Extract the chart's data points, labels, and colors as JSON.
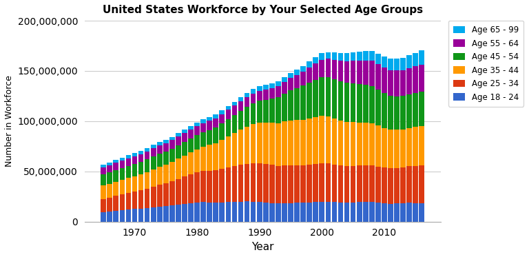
{
  "title": "United States Workforce by Your Selected Age Groups",
  "xlabel": "Year",
  "ylabel": "Number in Workforce",
  "years": [
    1965,
    1966,
    1967,
    1968,
    1969,
    1970,
    1971,
    1972,
    1973,
    1974,
    1975,
    1976,
    1977,
    1978,
    1979,
    1980,
    1981,
    1982,
    1983,
    1984,
    1985,
    1986,
    1987,
    1988,
    1989,
    1990,
    1991,
    1992,
    1993,
    1994,
    1995,
    1996,
    1997,
    1998,
    1999,
    2000,
    2001,
    2002,
    2003,
    2004,
    2005,
    2006,
    2007,
    2008,
    2009,
    2010,
    2011,
    2012,
    2013,
    2014,
    2015,
    2016
  ],
  "age_18_24": [
    9500000,
    10200000,
    10900000,
    11600000,
    12200000,
    12800000,
    13200000,
    13800000,
    14500000,
    15100000,
    15500000,
    16200000,
    17000000,
    17800000,
    18500000,
    19200000,
    19500000,
    19300000,
    19000000,
    19200000,
    19500000,
    19700000,
    20000000,
    20200000,
    20000000,
    19500000,
    18800000,
    18500000,
    18200000,
    18500000,
    18700000,
    18900000,
    19000000,
    19100000,
    19400000,
    19700000,
    19800000,
    19500000,
    19200000,
    19100000,
    19300000,
    19600000,
    19800000,
    19500000,
    18800000,
    18300000,
    18000000,
    18200000,
    18500000,
    18800000,
    18700000,
    18600000
  ],
  "age_25_34": [
    13000000,
    13800000,
    14700000,
    15600000,
    16500000,
    17200000,
    18000000,
    19200000,
    20500000,
    21800000,
    22800000,
    24000000,
    25500000,
    27000000,
    28500000,
    29800000,
    30800000,
    31500000,
    32000000,
    33200000,
    34500000,
    35500000,
    36500000,
    37500000,
    38200000,
    38800000,
    38500000,
    38000000,
    37500000,
    37800000,
    37600000,
    37200000,
    37100000,
    37500000,
    38000000,
    38500000,
    38200000,
    37500000,
    36800000,
    36500000,
    36300000,
    36200000,
    36500000,
    36700000,
    36200000,
    35500000,
    35000000,
    35200000,
    35800000,
    36500000,
    37000000,
    37500000
  ],
  "age_35_44": [
    13500000,
    13800000,
    14200000,
    14600000,
    15000000,
    15400000,
    15800000,
    16300000,
    17000000,
    17800000,
    18400000,
    19200000,
    20100000,
    21000000,
    22000000,
    23000000,
    24200000,
    25500000,
    27000000,
    29000000,
    31000000,
    33000000,
    35000000,
    37000000,
    39000000,
    40500000,
    41500000,
    42000000,
    42500000,
    43500000,
    44500000,
    45000000,
    45500000,
    46000000,
    46500000,
    47000000,
    46500000,
    45500000,
    44500000,
    43800000,
    43500000,
    43000000,
    42500000,
    42000000,
    40800000,
    39500000,
    38500000,
    38000000,
    37500000,
    37800000,
    38500000,
    39000000
  ],
  "age_45_54": [
    11000000,
    11200000,
    11500000,
    11700000,
    12000000,
    12200000,
    12400000,
    12600000,
    12800000,
    13000000,
    13200000,
    13400000,
    13600000,
    13800000,
    14000000,
    14300000,
    14600000,
    15000000,
    15500000,
    16200000,
    16900000,
    17600000,
    18500000,
    19500000,
    20500000,
    21500000,
    22500000,
    24000000,
    25500000,
    27500000,
    30000000,
    32000000,
    34000000,
    36000000,
    37500000,
    38500000,
    39000000,
    39200000,
    39200000,
    39000000,
    38500000,
    38000000,
    37500000,
    37000000,
    36000000,
    35000000,
    34000000,
    33500000,
    33200000,
    33500000,
    34000000,
    34500000
  ],
  "age_55_64": [
    7000000,
    7100000,
    7300000,
    7400000,
    7500000,
    7700000,
    7800000,
    8000000,
    8200000,
    8300000,
    8300000,
    8400000,
    8500000,
    8600000,
    8700000,
    8900000,
    9100000,
    9200000,
    9300000,
    9400000,
    9500000,
    9600000,
    9700000,
    9800000,
    9900000,
    10000000,
    10200000,
    10600000,
    11000000,
    11500000,
    12000000,
    12800000,
    13800000,
    15000000,
    16200000,
    17500000,
    18500000,
    19500000,
    20500000,
    21500000,
    22500000,
    23500000,
    24200000,
    24800000,
    25000000,
    25200000,
    25500000,
    25800000,
    26000000,
    26200000,
    26500000,
    26800000
  ],
  "age_65_99": [
    2500000,
    2600000,
    2700000,
    2800000,
    2900000,
    3000000,
    3100000,
    3200000,
    3300000,
    3300000,
    3200000,
    3200000,
    3300000,
    3400000,
    3500000,
    3600000,
    3600000,
    3600000,
    3700000,
    3800000,
    3900000,
    4000000,
    4100000,
    4200000,
    4300000,
    4400000,
    4500000,
    4600000,
    4700000,
    4900000,
    5100000,
    5300000,
    5600000,
    5900000,
    6200000,
    6500000,
    6800000,
    7200000,
    7600000,
    8000000,
    8500000,
    9000000,
    9500000,
    10000000,
    10500000,
    10800000,
    11200000,
    11700000,
    12200000,
    12800000,
    13400000,
    14000000
  ],
  "colors": {
    "age_18_24": "#3366CC",
    "age_25_34": "#DC3912",
    "age_35_44": "#FF9900",
    "age_45_54": "#109618",
    "age_55_64": "#990099",
    "age_65_99": "#00AAEE"
  },
  "ylim": [
    0,
    200000000
  ],
  "yticks": [
    0,
    50000000,
    100000000,
    150000000,
    200000000
  ],
  "background_color": "#ffffff",
  "grid_color": "#cccccc",
  "title_fontsize": 11,
  "axis_label_fontsize": 11,
  "ylabel_fontsize": 9,
  "legend_fontsize": 8.5
}
